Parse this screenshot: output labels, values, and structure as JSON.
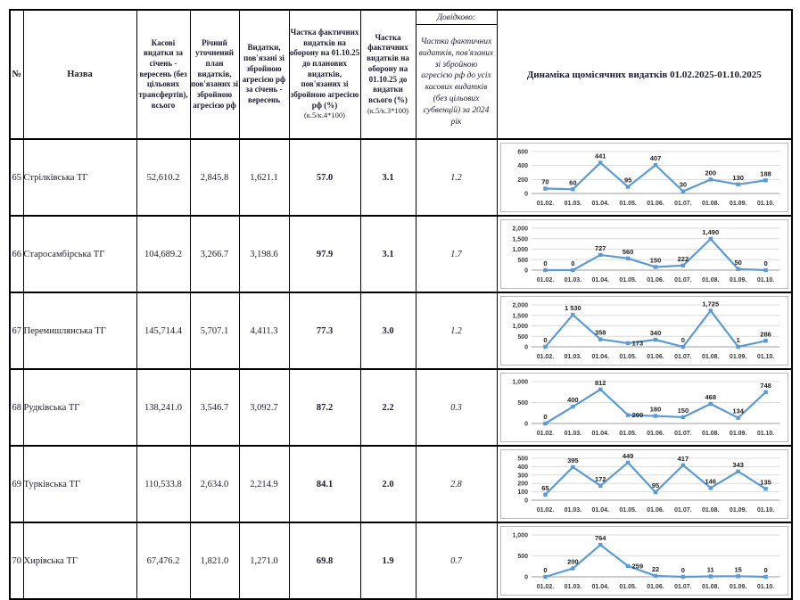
{
  "table": {
    "headers": {
      "num": "№",
      "name": "Назва",
      "cash": "Касові видатки за січень - вересень (без цільових трансфертів), всього",
      "plan": "Річний уточнений план видатків, пов'язаних зі збройною агресією рф",
      "spent": "Видатки, пов'язані зі збройною агресією рф за січень - вересень",
      "pct_plan_main": "Частка фактичних видатків на оборону на 01.10.25 до планових видатків, пов'язаних зі збройною агресією рф (%)",
      "pct_plan_formula": "(к.5/к.4*100)",
      "pct_total_main": "Частка фактичних видатків на оборону на 01.10.25 до видатки всього (%)",
      "pct_total_formula": "(к.5/к.3*100)",
      "ref_label": "Довідково:",
      "ref_text": "Частка фактичних видатків, пов'язаних зі збройною агресією рф до усіх касових видатків (без цільових субвенцій) за 2024 рік",
      "chart_col": "Динаміка щомісячних видатків 01.02.2025-01.10.2025"
    },
    "rows": [
      {
        "num": "65",
        "name": "Стрілківська ТГ",
        "cash": "52,610.2",
        "plan": "2,845.8",
        "spent": "1,621.1",
        "pct_plan": "57.0",
        "pct_total": "3.1",
        "ref": "1.2"
      },
      {
        "num": "66",
        "name": "Старосамбірська ТГ",
        "cash": "104,689.2",
        "plan": "3,266.7",
        "spent": "3,198.6",
        "pct_plan": "97.9",
        "pct_total": "3.1",
        "ref": "1.7"
      },
      {
        "num": "67",
        "name": "Перемишлянська ТГ",
        "cash": "145,714.4",
        "plan": "5,707.1",
        "spent": "4,411.3",
        "pct_plan": "77.3",
        "pct_total": "3.0",
        "ref": "1.2"
      },
      {
        "num": "68",
        "name": "Рудківська ТГ",
        "cash": "138,241.0",
        "plan": "3,546.7",
        "spent": "3,092.7",
        "pct_plan": "87.2",
        "pct_total": "2.2",
        "ref": "0.3"
      },
      {
        "num": "69",
        "name": "Турківська ТГ",
        "cash": "110,533.8",
        "plan": "2,634.0",
        "spent": "2,214.9",
        "pct_plan": "84.1",
        "pct_total": "2.0",
        "ref": "2.8"
      },
      {
        "num": "70",
        "name": "Хирівська ТГ",
        "cash": "67,476.2",
        "plan": "1,821.0",
        "spent": "1,271.0",
        "pct_plan": "69.8",
        "pct_total": "1.9",
        "ref": "0.7"
      }
    ]
  },
  "chart_data": [
    {
      "type": "line",
      "row": "65",
      "x": [
        "01.02.",
        "01.03.",
        "01.04.",
        "01.05.",
        "01.06.",
        "01.07.",
        "01.08.",
        "01.09.",
        "01.10."
      ],
      "values": [
        70,
        60,
        441,
        95,
        407,
        30,
        200,
        130,
        188
      ],
      "point_labels": [
        "70",
        "60",
        "441",
        "95",
        "407",
        "30",
        "200",
        "130",
        "188"
      ],
      "ylim": [
        0,
        600
      ],
      "yticks": [
        0,
        200,
        400,
        600
      ],
      "ytick_labels": [
        "0",
        "200",
        "400",
        "600"
      ],
      "line_color": "#5B9BD5",
      "grid": true,
      "legend": "none",
      "label_positions": {}
    },
    {
      "type": "line",
      "row": "66",
      "x": [
        "01.02.",
        "01.03.",
        "01.04.",
        "01.05.",
        "01.06.",
        "01.07.",
        "01.08.",
        "01.09.",
        "01.10."
      ],
      "values": [
        0,
        0,
        727,
        560,
        150,
        222,
        1490,
        50,
        0
      ],
      "point_labels": [
        "0",
        "0",
        "727",
        "560",
        "150",
        "222",
        "1,490",
        "50",
        "0"
      ],
      "ylim": [
        0,
        2000
      ],
      "yticks": [
        0,
        500,
        1000,
        1500,
        2000
      ],
      "ytick_labels": [
        "0",
        "500",
        "1,000",
        "1,500",
        "2,000"
      ],
      "line_color": "#5B9BD5",
      "grid": true,
      "legend": "none",
      "label_positions": {}
    },
    {
      "type": "line",
      "row": "67",
      "x": [
        "01.02.",
        "01.03.",
        "01.04.",
        "01.05.",
        "01.06.",
        "01.07.",
        "01.08.",
        "01.09.",
        "01.10."
      ],
      "values": [
        0,
        1530,
        358,
        173,
        340,
        0,
        1725,
        1,
        286
      ],
      "point_labels": [
        "0",
        "1 530",
        "358",
        "173",
        "340",
        "0",
        "1,725",
        "1",
        "286"
      ],
      "ylim": [
        0,
        2000
      ],
      "yticks": [
        0,
        500,
        1000,
        1500,
        2000
      ],
      "ytick_labels": [
        "0",
        "500",
        "1,000",
        "1,500",
        "2,000"
      ],
      "line_color": "#5B9BD5",
      "grid": true,
      "legend": "none",
      "label_positions": {
        "3": "right"
      }
    },
    {
      "type": "line",
      "row": "68",
      "x": [
        "01.02.",
        "01.03.",
        "01.04.",
        "01.05.",
        "01.06.",
        "01.07.",
        "01.08.",
        "01.09.",
        "01.10."
      ],
      "values": [
        0,
        400,
        812,
        200,
        180,
        150,
        468,
        134,
        748
      ],
      "point_labels": [
        "0",
        "400",
        "812",
        "200",
        "180",
        "150",
        "468",
        "134",
        "748"
      ],
      "ylim": [
        0,
        1000
      ],
      "yticks": [
        0,
        500,
        1000
      ],
      "ytick_labels": [
        "0",
        "500",
        "1,000"
      ],
      "line_color": "#5B9BD5",
      "grid": true,
      "legend": "none",
      "label_positions": {
        "3": "right"
      }
    },
    {
      "type": "line",
      "row": "69",
      "x": [
        "01.02.",
        "01.03.",
        "01.04.",
        "01.05.",
        "01.06.",
        "01.07.",
        "01.08.",
        "01.09.",
        "01.10."
      ],
      "values": [
        65,
        395,
        172,
        449,
        95,
        417,
        146,
        343,
        135
      ],
      "point_labels": [
        "65",
        "395",
        "172",
        "449",
        "95",
        "417",
        "146",
        "343",
        "135"
      ],
      "ylim": [
        0,
        500
      ],
      "yticks": [
        0,
        100,
        200,
        300,
        400,
        500
      ],
      "ytick_labels": [
        "0",
        "100",
        "200",
        "300",
        "400",
        "500"
      ],
      "line_color": "#5B9BD5",
      "grid": true,
      "legend": "none",
      "label_positions": {}
    },
    {
      "type": "line",
      "row": "70",
      "x": [
        "01.02.",
        "01.03.",
        "01.04.",
        "01.05.",
        "01.06.",
        "01.07.",
        "01.08.",
        "01.09.",
        "01.10."
      ],
      "values": [
        0,
        200,
        764,
        259,
        22,
        0,
        11,
        15,
        0
      ],
      "point_labels": [
        "0",
        "200",
        "764",
        "259",
        "22",
        "0",
        "11",
        "15",
        "0"
      ],
      "ylim": [
        0,
        1000
      ],
      "yticks": [
        0,
        500,
        1000
      ],
      "ytick_labels": [
        "0",
        "500",
        "1,000"
      ],
      "line_color": "#5B9BD5",
      "grid": true,
      "legend": "none",
      "label_positions": {
        "3": "right"
      }
    }
  ]
}
